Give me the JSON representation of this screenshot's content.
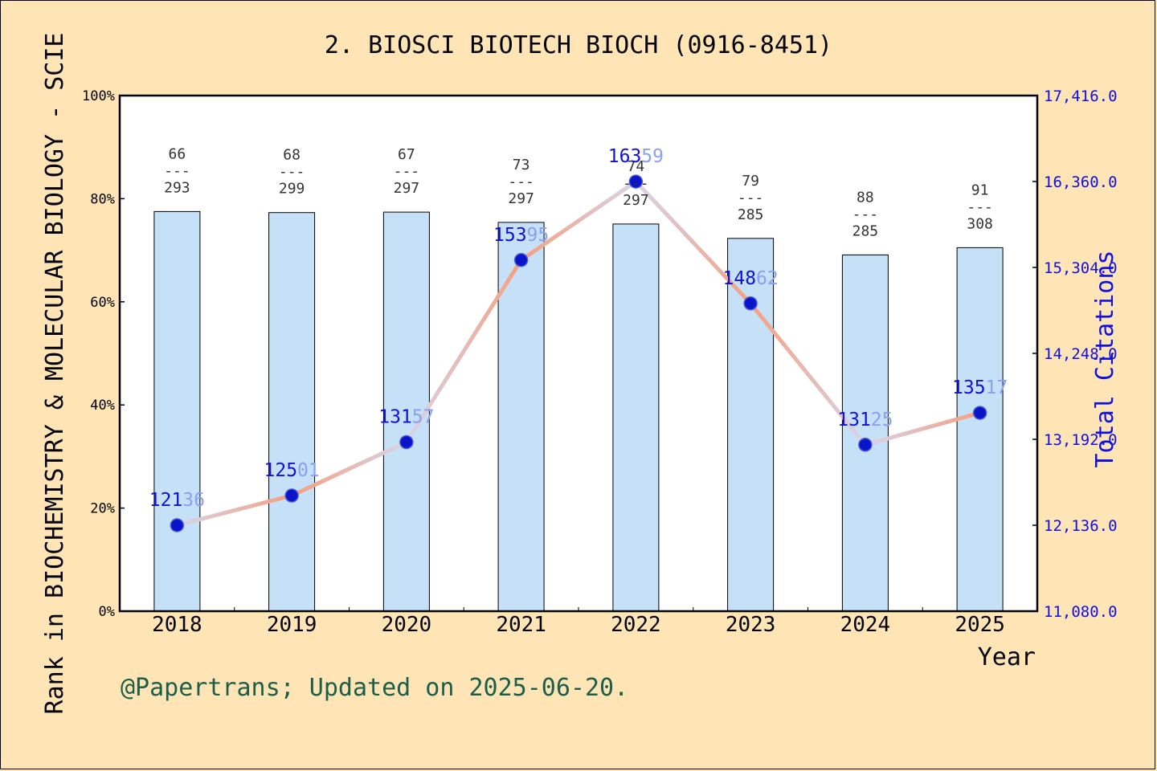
{
  "chart_data": {
    "type": "bar",
    "title": "2. BIOSCI BIOTECH BIOCH (0916-8451)",
    "xlabel": "Year",
    "ylabel": "Rank in BIOCHEMISTRY & MOLECULAR BIOLOGY - SCIE",
    "y2label": "Total Citations",
    "footer": "@Papertrans; Updated on 2025-06-20.",
    "categories": [
      "2018",
      "2019",
      "2020",
      "2021",
      "2022",
      "2023",
      "2024",
      "2025"
    ],
    "ylim": [
      0,
      100
    ],
    "yticks": [
      "0%",
      "20%",
      "40%",
      "60%",
      "80%",
      "100%"
    ],
    "y2lim": [
      11080.0,
      17416.0
    ],
    "y2ticks": [
      "11,080.0",
      "12,136.0",
      "13,192.0",
      "14,248.0",
      "15,304.0",
      "16,360.0",
      "17,416.0"
    ],
    "series": [
      {
        "kind": "bar",
        "axis": "left",
        "color": "#c6e0f8",
        "values": [
          77.5,
          77.3,
          77.4,
          75.4,
          75.1,
          72.3,
          69.1,
          70.5
        ],
        "labels": [
          {
            "rank": "66",
            "sep": "---",
            "total": "293"
          },
          {
            "rank": "68",
            "sep": "---",
            "total": "299"
          },
          {
            "rank": "67",
            "sep": "---",
            "total": "297"
          },
          {
            "rank": "73",
            "sep": "---",
            "total": "297"
          },
          {
            "rank": "74",
            "sep": "---",
            "total": "297"
          },
          {
            "rank": "79",
            "sep": "---",
            "total": "285"
          },
          {
            "rank": "88",
            "sep": "---",
            "total": "285"
          },
          {
            "rank": "91",
            "sep": "---",
            "total": "308"
          }
        ]
      },
      {
        "kind": "line",
        "axis": "right",
        "color": "#f4a080",
        "marker_color": "#0a14c8",
        "values": [
          12136,
          12501,
          13157,
          15395,
          16359,
          14862,
          13125,
          13517
        ],
        "labels": [
          "12136",
          "12501",
          "13157",
          "15395",
          "16359",
          "14862",
          "13125",
          "13517"
        ]
      }
    ]
  }
}
